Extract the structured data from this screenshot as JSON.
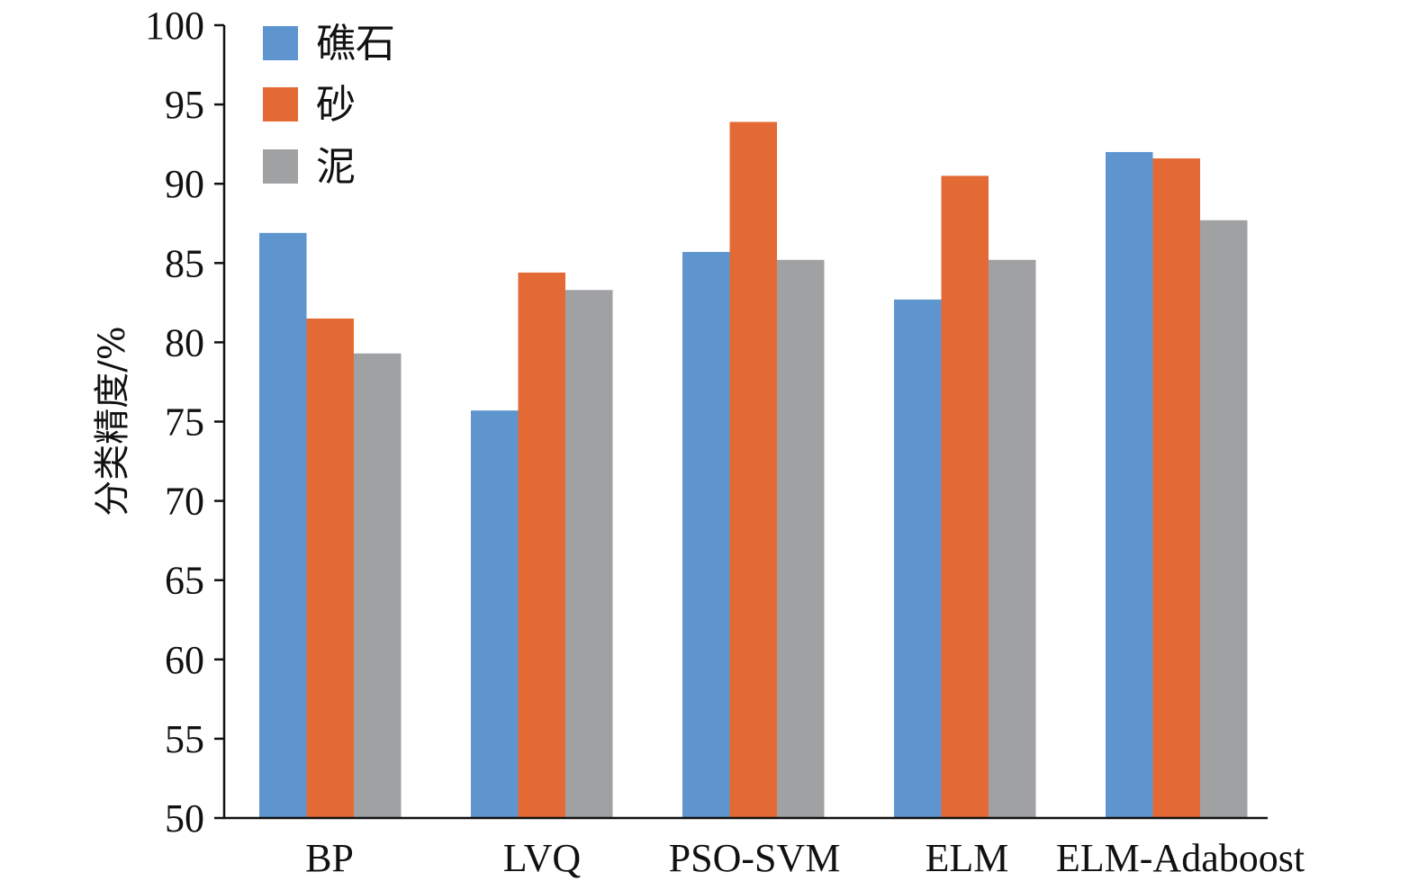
{
  "chart_data": {
    "type": "bar",
    "title": "",
    "xlabel": "",
    "ylabel": "分类精度/%",
    "ylim": [
      50,
      100
    ],
    "yticks": [
      50,
      55,
      60,
      65,
      70,
      75,
      80,
      85,
      90,
      95,
      100
    ],
    "grid": false,
    "legend_position": "top-left",
    "categories": [
      "BP",
      "LVQ",
      "PSO-SVM",
      "ELM",
      "ELM-Adaboost"
    ],
    "series": [
      {
        "name": "礁石",
        "color": "#5f95cf",
        "values": [
          86.9,
          75.7,
          85.7,
          82.7,
          92.0
        ]
      },
      {
        "name": "砂",
        "color": "#e46a35",
        "values": [
          81.5,
          84.4,
          93.9,
          90.5,
          91.6
        ]
      },
      {
        "name": "泥",
        "color": "#a0a1a3",
        "values": [
          79.3,
          83.3,
          85.2,
          85.2,
          87.7
        ]
      }
    ]
  }
}
